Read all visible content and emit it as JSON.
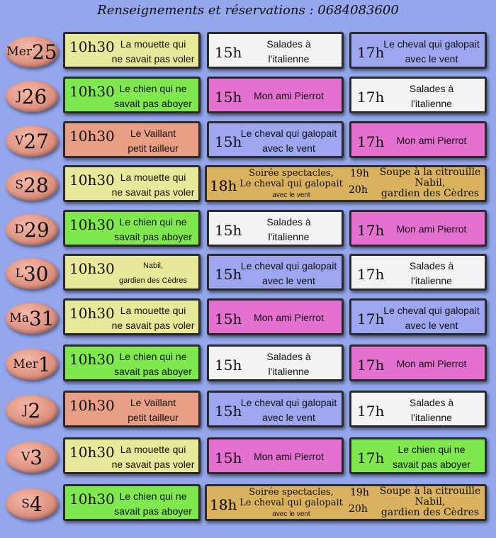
{
  "header": "Renseignements et réservations : 0684083600",
  "rows": [
    {
      "day_prefix": "Mer",
      "day_num": "25",
      "c1": {
        "time": "10h30",
        "l1": "La mouette qui",
        "l2": "ne savait pas voler"
      },
      "c2": {
        "time": "15h",
        "l1": "Salades à",
        "l2": "l'italienne"
      },
      "c3": {
        "time": "17h",
        "l1": "Le cheval qui galopait",
        "l2": "avec le vent"
      }
    },
    {
      "day_prefix": "J",
      "day_num": "26",
      "c1": {
        "time": "10h30",
        "l1": "Le chien qui ne",
        "l2": "savait pas aboyer"
      },
      "c2": {
        "time": "15h",
        "l1": "Mon ami Pierrot",
        "l2": ""
      },
      "c3": {
        "time": "17h",
        "l1": "Salades à",
        "l2": "l'italienne"
      }
    },
    {
      "day_prefix": "V",
      "day_num": "27",
      "c1": {
        "time": "10h30",
        "l1": "Le Vaillant",
        "l2": "petit tailleur"
      },
      "c2": {
        "time": "15h",
        "l1": "Le cheval qui galopait",
        "l2": "avec le vent"
      },
      "c3": {
        "time": "17h",
        "l1": "Mon ami Pierrot",
        "l2": ""
      }
    },
    {
      "day_prefix": "S",
      "day_num": "28",
      "c1": {
        "time": "10h30",
        "l1": "La mouette qui",
        "l2": "ne savait pas voler"
      },
      "special": {
        "time1": "18h",
        "l1": "Soirée spectacles,",
        "l2": "Le cheval qui galopait",
        "l3": "avec le vent",
        "time2a": "19h",
        "time2b": "20h",
        "r1": "Soupe à la citrouille",
        "r2": "Nabil,",
        "r3": "gardien des Cèdres"
      }
    },
    {
      "day_prefix": "D",
      "day_num": "29",
      "c1": {
        "time": "10h30",
        "l1": "Le chien qui ne",
        "l2": "savait pas aboyer"
      },
      "c2": {
        "time": "15h",
        "l1": "Salades à",
        "l2": "l'italienne"
      },
      "c3": {
        "time": "17h",
        "l1": "Mon ami Pierrot",
        "l2": ""
      }
    },
    {
      "day_prefix": "L",
      "day_num": "30",
      "c1": {
        "time": "10h30",
        "l1": "Nabil,",
        "l2": "gardien des Cèdres"
      },
      "c2": {
        "time": "15h",
        "l1": "Le cheval qui galopait",
        "l2": "avec le vent"
      },
      "c3": {
        "time": "17h",
        "l1": "Salades à",
        "l2": "l'italienne"
      }
    },
    {
      "day_prefix": "Ma",
      "day_num": "31",
      "c1": {
        "time": "10h30",
        "l1": "La mouette qui",
        "l2": "ne savait pas voler"
      },
      "c2": {
        "time": "15h",
        "l1": "Mon ami Pierrot",
        "l2": ""
      },
      "c3": {
        "time": "17h",
        "l1": "Le cheval qui galopait",
        "l2": "avec le vent"
      }
    },
    {
      "day_prefix": "Mer",
      "day_num": "1",
      "c1": {
        "time": "10h30",
        "l1": "Le chien qui ne",
        "l2": "savait pas aboyer"
      },
      "c2": {
        "time": "15h",
        "l1": "Salades à",
        "l2": "l'italienne"
      },
      "c3": {
        "time": "17h",
        "l1": "Mon ami Pierrot",
        "l2": ""
      }
    },
    {
      "day_prefix": "J",
      "day_num": "2",
      "c1": {
        "time": "10h30",
        "l1": "Le Vaillant",
        "l2": "petit tailleur"
      },
      "c2": {
        "time": "15h",
        "l1": "Le cheval qui galopait",
        "l2": "avec le vent"
      },
      "c3": {
        "time": "17h",
        "l1": "Salades à",
        "l2": "l'italienne"
      }
    },
    {
      "day_prefix": "V",
      "day_num": "3",
      "c1": {
        "time": "10h30",
        "l1": "La mouette qui",
        "l2": "ne savait pas voler"
      },
      "c2": {
        "time": "15h",
        "l1": "Mon ami Pierrot",
        "l2": ""
      },
      "c3": {
        "time": "17h",
        "l1": "Le chien qui ne",
        "l2": "savait pas aboyer"
      }
    },
    {
      "day_prefix": "S",
      "day_num": "4",
      "c1": {
        "time": "10h30",
        "l1": "Le chien qui ne",
        "l2": "savait pas aboyer"
      },
      "special": {
        "time1": "18h",
        "l1": "Soirée spectacles,",
        "l2": "Le cheval qui galopait",
        "l3": "avec le vent",
        "time2a": "19h",
        "time2b": "20h",
        "r1": "Soupe à la citrouille",
        "r2": "Nabil,",
        "r3": "gardien des Cèdres"
      }
    }
  ],
  "colors": {
    "la-mouette": "#e7e89a",
    "le-chien": "#7ee84e",
    "le-vaillant": "#e99e86",
    "salades": "#f3f3f3",
    "le-cheval": "#9fa6f0",
    "mon-ami-pierrot": "#e470cf",
    "soiree": "#d9b15f",
    "nabil": "#e7e89a",
    "background": "#94a6ec"
  }
}
